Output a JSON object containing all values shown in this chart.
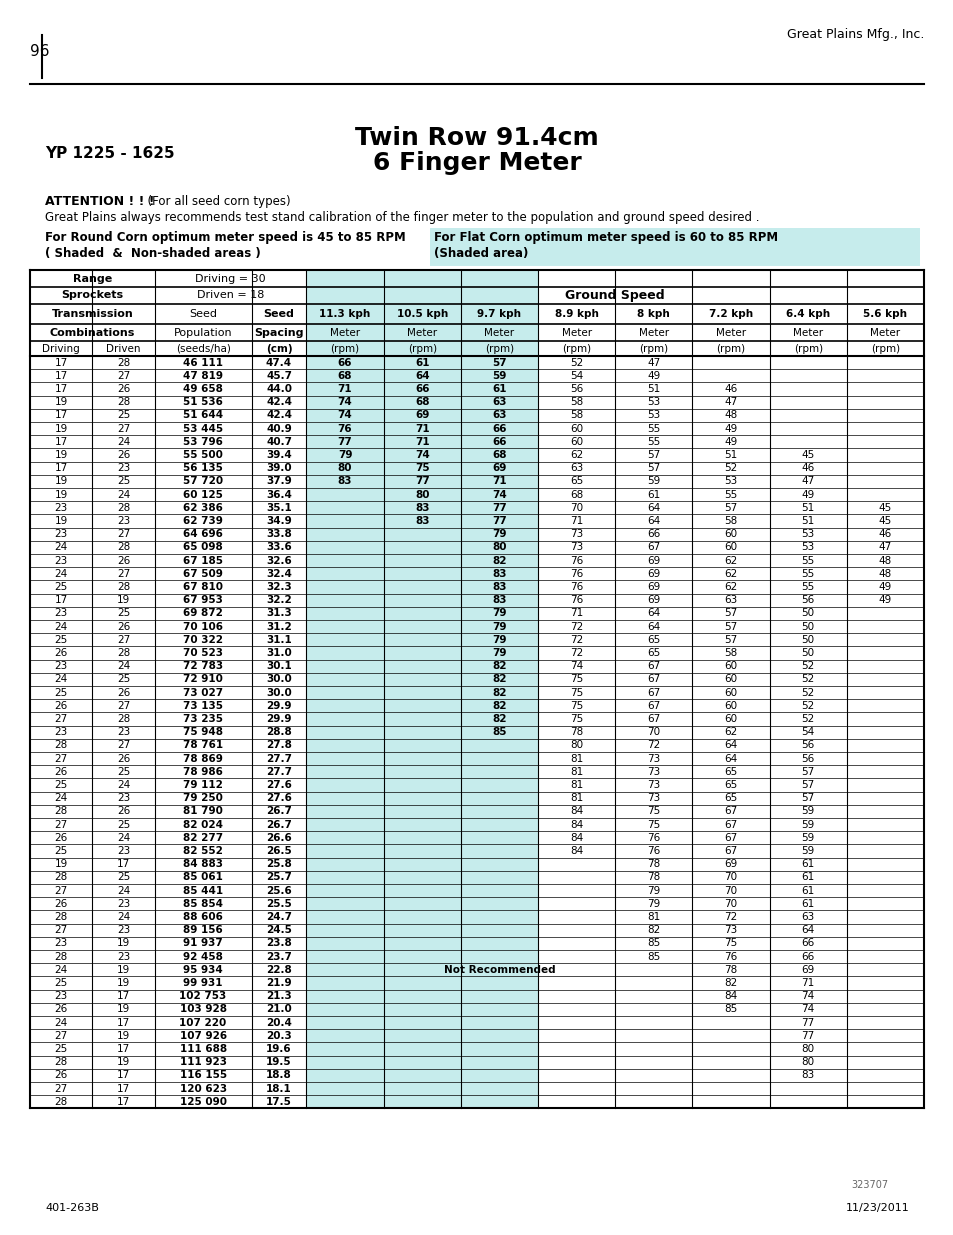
{
  "page_num": "96",
  "company": "Great Plains Mfg., Inc.",
  "title_left": "YP 1225 - 1625",
  "title_center_1": "Twin Row 91.4cm",
  "title_center_2": "6 Finger Meter",
  "attention_bold": "ATTENTION ! ! !",
  "attention_light": "  (For all seed corn types)",
  "attention2": "Great Plains always recommends test stand calibration of the finger meter to the population and ground speed desired .",
  "round_corn_line1": "For Round Corn optimum meter speed is 45 to 85 RPM",
  "round_corn_line2": "( Shaded  &  Non-shaded areas )",
  "flat_corn_line1": "For Flat Corn optimum meter speed is 60 to 85 RPM",
  "flat_corn_line2": "(Shaded area)",
  "flat_corn_bg": "#c6ecec",
  "shaded_bg": "#c6ecec",
  "table_data": [
    [
      17,
      28,
      "46 111",
      "47.4",
      "66",
      "61",
      "57",
      "52",
      "47",
      "",
      "",
      ""
    ],
    [
      17,
      27,
      "47 819",
      "45.7",
      "68",
      "64",
      "59",
      "54",
      "49",
      "",
      "",
      ""
    ],
    [
      17,
      26,
      "49 658",
      "44.0",
      "71",
      "66",
      "61",
      "56",
      "51",
      "46",
      "",
      ""
    ],
    [
      19,
      28,
      "51 536",
      "42.4",
      "74",
      "68",
      "63",
      "58",
      "53",
      "47",
      "",
      ""
    ],
    [
      17,
      25,
      "51 644",
      "42.4",
      "74",
      "69",
      "63",
      "58",
      "53",
      "48",
      "",
      ""
    ],
    [
      19,
      27,
      "53 445",
      "40.9",
      "76",
      "71",
      "66",
      "60",
      "55",
      "49",
      "",
      ""
    ],
    [
      17,
      24,
      "53 796",
      "40.7",
      "77",
      "71",
      "66",
      "60",
      "55",
      "49",
      "",
      ""
    ],
    [
      19,
      26,
      "55 500",
      "39.4",
      "79",
      "74",
      "68",
      "62",
      "57",
      "51",
      "45",
      ""
    ],
    [
      17,
      23,
      "56 135",
      "39.0",
      "80",
      "75",
      "69",
      "63",
      "57",
      "52",
      "46",
      ""
    ],
    [
      19,
      25,
      "57 720",
      "37.9",
      "83",
      "77",
      "71",
      "65",
      "59",
      "53",
      "47",
      ""
    ],
    [
      19,
      24,
      "60 125",
      "36.4",
      "",
      "80",
      "74",
      "68",
      "61",
      "55",
      "49",
      ""
    ],
    [
      23,
      28,
      "62 386",
      "35.1",
      "",
      "83",
      "77",
      "70",
      "64",
      "57",
      "51",
      "45"
    ],
    [
      19,
      23,
      "62 739",
      "34.9",
      "",
      "83",
      "77",
      "71",
      "64",
      "58",
      "51",
      "45"
    ],
    [
      23,
      27,
      "64 696",
      "33.8",
      "",
      "",
      "79",
      "73",
      "66",
      "60",
      "53",
      "46"
    ],
    [
      24,
      28,
      "65 098",
      "33.6",
      "",
      "",
      "80",
      "73",
      "67",
      "60",
      "53",
      "47"
    ],
    [
      23,
      26,
      "67 185",
      "32.6",
      "",
      "",
      "82",
      "76",
      "69",
      "62",
      "55",
      "48"
    ],
    [
      24,
      27,
      "67 509",
      "32.4",
      "",
      "",
      "83",
      "76",
      "69",
      "62",
      "55",
      "48"
    ],
    [
      25,
      28,
      "67 810",
      "32.3",
      "",
      "",
      "83",
      "76",
      "69",
      "62",
      "55",
      "49"
    ],
    [
      17,
      19,
      "67 953",
      "32.2",
      "",
      "",
      "83",
      "76",
      "69",
      "63",
      "56",
      "49"
    ],
    [
      23,
      25,
      "69 872",
      "31.3",
      "",
      "",
      "79",
      "71",
      "64",
      "57",
      "50",
      ""
    ],
    [
      24,
      26,
      "70 106",
      "31.2",
      "",
      "",
      "79",
      "72",
      "64",
      "57",
      "50",
      ""
    ],
    [
      25,
      27,
      "70 322",
      "31.1",
      "",
      "",
      "79",
      "72",
      "65",
      "57",
      "50",
      ""
    ],
    [
      26,
      28,
      "70 523",
      "31.0",
      "",
      "",
      "79",
      "72",
      "65",
      "58",
      "50",
      ""
    ],
    [
      23,
      24,
      "72 783",
      "30.1",
      "",
      "",
      "82",
      "74",
      "67",
      "60",
      "52",
      ""
    ],
    [
      24,
      25,
      "72 910",
      "30.0",
      "",
      "",
      "82",
      "75",
      "67",
      "60",
      "52",
      ""
    ],
    [
      25,
      26,
      "73 027",
      "30.0",
      "",
      "",
      "82",
      "75",
      "67",
      "60",
      "52",
      ""
    ],
    [
      26,
      27,
      "73 135",
      "29.9",
      "",
      "",
      "82",
      "75",
      "67",
      "60",
      "52",
      ""
    ],
    [
      27,
      28,
      "73 235",
      "29.9",
      "",
      "",
      "82",
      "75",
      "67",
      "60",
      "52",
      ""
    ],
    [
      23,
      23,
      "75 948",
      "28.8",
      "",
      "",
      "85",
      "78",
      "70",
      "62",
      "54",
      ""
    ],
    [
      28,
      27,
      "78 761",
      "27.8",
      "",
      "",
      "",
      "80",
      "72",
      "64",
      "56",
      ""
    ],
    [
      27,
      26,
      "78 869",
      "27.7",
      "",
      "",
      "",
      "81",
      "73",
      "64",
      "56",
      ""
    ],
    [
      26,
      25,
      "78 986",
      "27.7",
      "",
      "",
      "",
      "81",
      "73",
      "65",
      "57",
      ""
    ],
    [
      25,
      24,
      "79 112",
      "27.6",
      "",
      "",
      "",
      "81",
      "73",
      "65",
      "57",
      ""
    ],
    [
      24,
      23,
      "79 250",
      "27.6",
      "",
      "",
      "",
      "81",
      "73",
      "65",
      "57",
      ""
    ],
    [
      28,
      26,
      "81 790",
      "26.7",
      "",
      "",
      "",
      "84",
      "75",
      "67",
      "59",
      ""
    ],
    [
      27,
      25,
      "82 024",
      "26.7",
      "",
      "",
      "",
      "84",
      "75",
      "67",
      "59",
      ""
    ],
    [
      26,
      24,
      "82 277",
      "26.6",
      "",
      "",
      "",
      "84",
      "76",
      "67",
      "59",
      ""
    ],
    [
      25,
      23,
      "82 552",
      "26.5",
      "",
      "",
      "",
      "84",
      "76",
      "67",
      "59",
      ""
    ],
    [
      19,
      17,
      "84 883",
      "25.8",
      "",
      "",
      "",
      "",
      "78",
      "69",
      "61",
      ""
    ],
    [
      28,
      25,
      "85 061",
      "25.7",
      "",
      "",
      "",
      "",
      "78",
      "70",
      "61",
      ""
    ],
    [
      27,
      24,
      "85 441",
      "25.6",
      "",
      "",
      "",
      "",
      "79",
      "70",
      "61",
      ""
    ],
    [
      26,
      23,
      "85 854",
      "25.5",
      "",
      "",
      "",
      "",
      "79",
      "70",
      "61",
      ""
    ],
    [
      28,
      24,
      "88 606",
      "24.7",
      "",
      "",
      "",
      "",
      "81",
      "72",
      "63",
      ""
    ],
    [
      27,
      23,
      "89 156",
      "24.5",
      "",
      "",
      "",
      "",
      "82",
      "73",
      "64",
      ""
    ],
    [
      23,
      19,
      "91 937",
      "23.8",
      "",
      "",
      "",
      "",
      "85",
      "75",
      "66",
      ""
    ],
    [
      28,
      23,
      "92 458",
      "23.7",
      "",
      "",
      "",
      "",
      "85",
      "76",
      "66",
      ""
    ],
    [
      24,
      19,
      "95 934",
      "22.8",
      "",
      "",
      "",
      "",
      "",
      "78",
      "69",
      ""
    ],
    [
      25,
      19,
      "99 931",
      "21.9",
      "",
      "",
      "",
      "",
      "",
      "82",
      "71",
      ""
    ],
    [
      23,
      17,
      "102 753",
      "21.3",
      "",
      "",
      "",
      "",
      "",
      "84",
      "74",
      ""
    ],
    [
      26,
      19,
      "103 928",
      "21.0",
      "",
      "",
      "",
      "",
      "",
      "85",
      "74",
      ""
    ],
    [
      24,
      17,
      "107 220",
      "20.4",
      "",
      "",
      "",
      "",
      "",
      "",
      "77",
      ""
    ],
    [
      27,
      19,
      "107 926",
      "20.3",
      "",
      "",
      "",
      "",
      "",
      "",
      "77",
      ""
    ],
    [
      25,
      17,
      "111 688",
      "19.6",
      "",
      "",
      "",
      "",
      "",
      "",
      "80",
      ""
    ],
    [
      28,
      19,
      "111 923",
      "19.5",
      "",
      "",
      "",
      "",
      "",
      "",
      "80",
      ""
    ],
    [
      26,
      17,
      "116 155",
      "18.8",
      "",
      "",
      "",
      "",
      "",
      "",
      "83",
      ""
    ],
    [
      27,
      17,
      "120 623",
      "18.1",
      "",
      "",
      "",
      "",
      "",
      "",
      "",
      ""
    ],
    [
      28,
      17,
      "125 090",
      "17.5",
      "",
      "",
      "",
      "",
      "",
      "",
      "",
      ""
    ]
  ],
  "not_recommended_row_idx": 46,
  "footer_left": "401-263B",
  "footer_right": "11/23/2011",
  "footer_code": "323707"
}
